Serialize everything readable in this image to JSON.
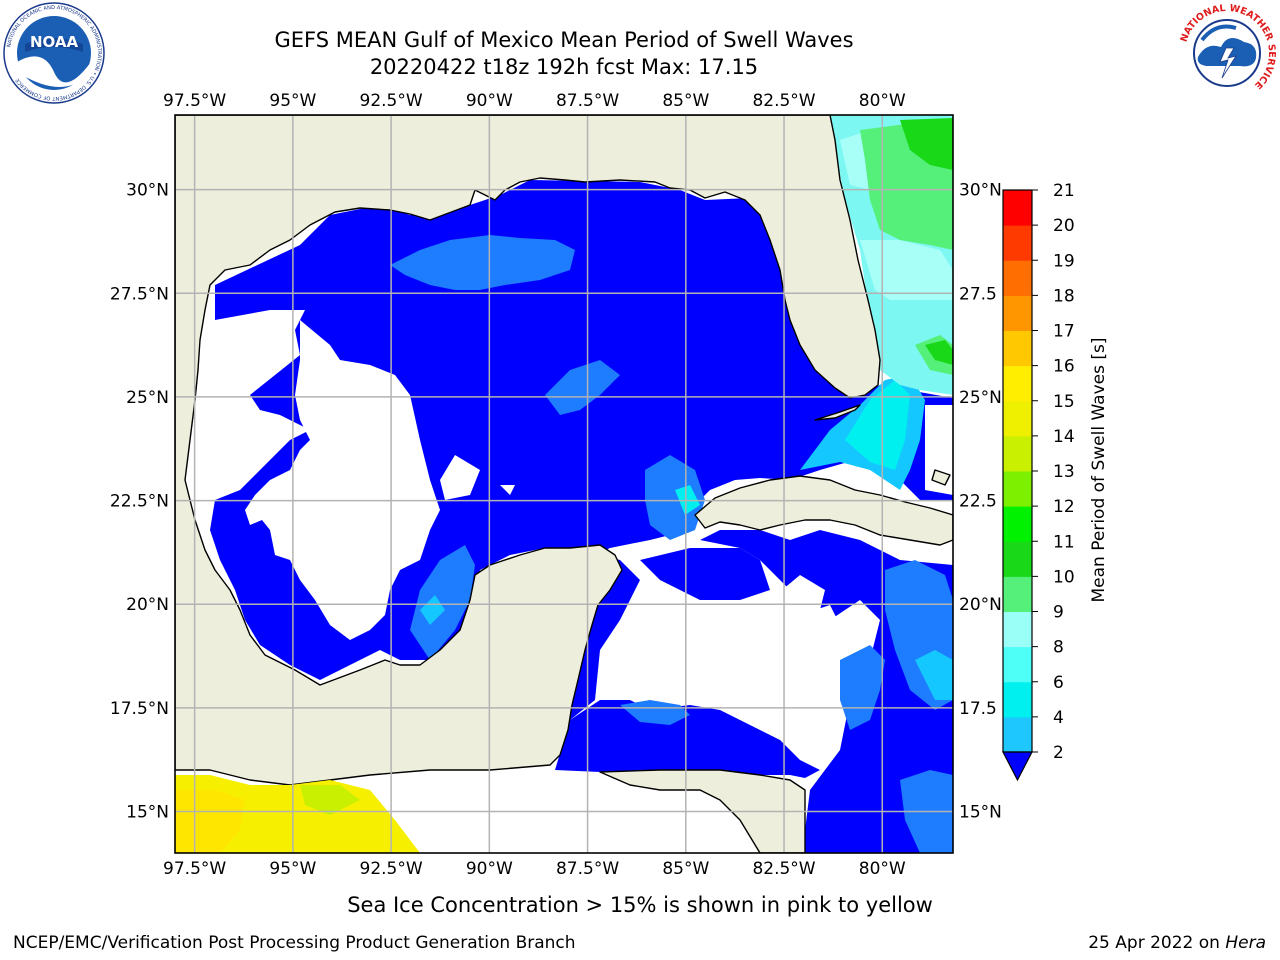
{
  "header": {
    "title_line1": "GEFS MEAN Gulf of Mexico Mean Period of Swell Waves",
    "title_line2": "20220422 t18z 192h fcst   Max: 17.15"
  },
  "logos": {
    "left": {
      "icon": "noaa-logo-icon",
      "text": "NOAA",
      "ring_text": "NATIONAL OCEANIC AND ATMOSPHERIC ADMINISTRATION • U.S. DEPARTMENT OF COMMERCE"
    },
    "right": {
      "icon": "nws-logo-icon",
      "ring_text": "NATIONAL WEATHER SERVICE"
    }
  },
  "map": {
    "lon_range": [
      -98.0,
      -78.2
    ],
    "lat_range": [
      14.0,
      31.8
    ],
    "lon_ticks": [
      {
        "value": -97.5,
        "label": "97.5°W"
      },
      {
        "value": -95,
        "label": "95°W"
      },
      {
        "value": -92.5,
        "label": "92.5°W"
      },
      {
        "value": -90,
        "label": "90°W"
      },
      {
        "value": -87.5,
        "label": "87.5°W"
      },
      {
        "value": -85,
        "label": "85°W"
      },
      {
        "value": -82.5,
        "label": "82.5°W"
      },
      {
        "value": -80,
        "label": "80°W"
      }
    ],
    "lat_ticks_left": [
      {
        "value": 30,
        "label": "30°N"
      },
      {
        "value": 27.5,
        "label": "27.5°N"
      },
      {
        "value": 25,
        "label": "25°N"
      },
      {
        "value": 22.5,
        "label": "22.5°N"
      },
      {
        "value": 20,
        "label": "20°N"
      },
      {
        "value": 17.5,
        "label": "17.5°N"
      },
      {
        "value": 15,
        "label": "15°N"
      }
    ],
    "lat_ticks_right": [
      {
        "value": 30,
        "label": "30°N"
      },
      {
        "value": 27.5,
        "label": "27.5"
      },
      {
        "value": 25,
        "label": "25°N"
      },
      {
        "value": 22.5,
        "label": "22.5"
      },
      {
        "value": 20,
        "label": "20°N"
      },
      {
        "value": 17.5,
        "label": "17.5"
      },
      {
        "value": 15,
        "label": "15°N"
      }
    ],
    "grid": true,
    "colors": {
      "land": "#eeeedc",
      "no_data": "#ffffff",
      "grid": "#b3b3b3"
    }
  },
  "colorbar": {
    "label": "Mean Period of Swell Waves [s]",
    "ticks": [
      "2",
      "4",
      "6",
      "8",
      "9",
      "10",
      "11",
      "12",
      "13",
      "14",
      "15",
      "16",
      "17",
      "18",
      "19",
      "20",
      "21"
    ],
    "colors": [
      "#0a6cff",
      "#1ec8ff",
      "#00f0f0",
      "#4dfff7",
      "#99fff7",
      "#55f07a",
      "#18d818",
      "#00f200",
      "#7df000",
      "#c8f000",
      "#eef000",
      "#ffee00",
      "#ffc800",
      "#ff9600",
      "#ff6e00",
      "#ff3a00",
      "#ff0000"
    ],
    "under_color": "#0000ff"
  },
  "footer": {
    "subtitle": "Sea Ice Concentration > 15% is shown in pink to yellow",
    "credit": "NCEP/EMC/Verification Post Processing Product Generation Branch",
    "date": "25 Apr 2022 on",
    "host": "Hera"
  }
}
